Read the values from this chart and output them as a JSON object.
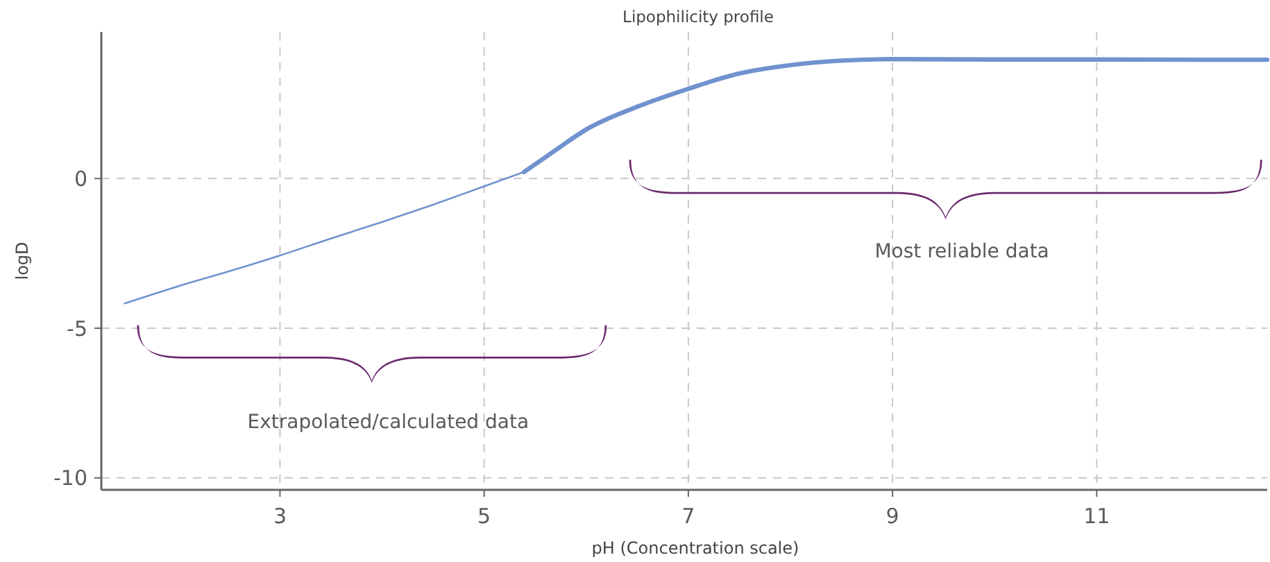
{
  "chart_data": {
    "type": "line",
    "title": "Lipophilicity profile",
    "xlabel": "pH (Concentration scale)",
    "ylabel": "logD",
    "xlim": [
      1.25,
      12.67
    ],
    "ylim": [
      -10.4,
      4.9
    ],
    "xticks": [
      3,
      5,
      7,
      9,
      11
    ],
    "yticks": [
      0,
      -5,
      -10
    ],
    "grid": true,
    "line_style": "solid",
    "annotations": [
      "Extrapolated/calculated data",
      "Most reliable data"
    ],
    "series": [
      {
        "color": "#7092cf",
        "x": [
          1.48,
          2,
          2.5,
          3,
          3.5,
          4,
          4.5,
          5,
          5.39
        ],
        "values": [
          -4.17,
          -3.6,
          -3.1,
          -2.57,
          -2.0,
          -1.45,
          -0.87,
          -0.26,
          0.22
        ]
      },
      {
        "color": "#7092cf",
        "x": [
          5.39,
          5.7,
          6,
          6.5,
          7,
          7.5,
          8,
          8.5,
          9,
          10,
          11,
          12,
          12.67
        ],
        "values": [
          0.22,
          0.95,
          1.64,
          2.4,
          3.0,
          3.51,
          3.79,
          3.94,
          3.99,
          3.98,
          3.98,
          3.97,
          3.97
        ]
      }
    ]
  }
}
